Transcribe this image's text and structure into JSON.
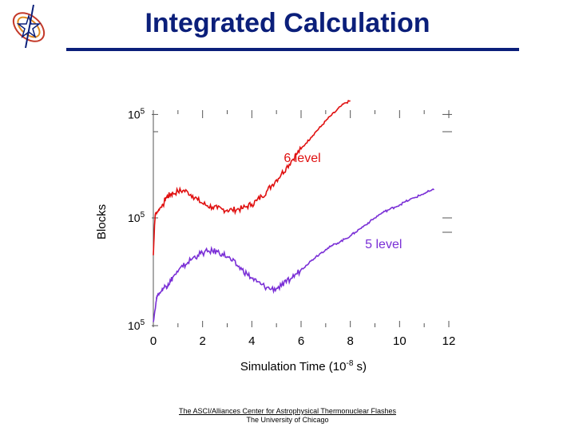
{
  "header": {
    "title": "Integrated Calculation"
  },
  "footer": {
    "line1": "The ASCI/Alliances Center for Astrophysical Thermonuclear Flashes",
    "line2": "The University of Chicago"
  },
  "colors": {
    "title": "#0b1f7a",
    "six_level": "#e01010",
    "five_level": "#7a2fd6"
  },
  "logo": {
    "icon": "flash-center-star-logo"
  },
  "chart_data": {
    "type": "line",
    "title": "",
    "xlabel_prefix": "Simulation Time (10",
    "xlabel_exp": "-8",
    "xlabel_suffix": " s)",
    "ylabel": "Blocks",
    "xlim": [
      0,
      12
    ],
    "ylim": [
      0,
      3
    ],
    "x_ticks": [
      0,
      2,
      4,
      6,
      8,
      10,
      12
    ],
    "y_tick_labels": [
      {
        "y": 0,
        "base": "10",
        "exp": "5"
      },
      {
        "y": 1.5,
        "base": "10",
        "exp": "5"
      },
      {
        "y": 2.94,
        "base": "10",
        "exp": "5"
      }
    ],
    "series": [
      {
        "name": "6 level",
        "label": "6 level",
        "color": "#e01010",
        "label_at": [
          5.3,
          2.28
        ],
        "x": [
          0.0,
          0.05,
          0.08,
          0.1,
          0.2,
          0.3,
          0.4,
          0.5,
          0.6,
          0.7,
          0.8,
          1.0,
          1.2,
          1.4,
          1.6,
          1.8,
          2.0,
          2.2,
          2.4,
          2.6,
          2.8,
          3.0,
          3.2,
          3.4,
          3.6,
          3.8,
          4.0,
          4.2,
          4.4,
          4.6,
          4.8,
          5.0,
          5.2,
          5.4,
          5.6,
          5.8,
          6.0,
          6.2,
          6.4,
          6.6,
          6.8,
          7.0,
          7.2,
          7.4,
          7.6,
          7.8,
          8.0
        ],
        "y": [
          0.98,
          1.4,
          1.55,
          1.56,
          1.6,
          1.65,
          1.68,
          1.78,
          1.8,
          1.83,
          1.84,
          1.87,
          1.88,
          1.86,
          1.81,
          1.75,
          1.7,
          1.67,
          1.65,
          1.63,
          1.62,
          1.61,
          1.61,
          1.62,
          1.63,
          1.66,
          1.69,
          1.74,
          1.8,
          1.87,
          1.95,
          2.03,
          2.11,
          2.2,
          2.29,
          2.38,
          2.46,
          2.54,
          2.62,
          2.7,
          2.77,
          2.85,
          2.92,
          2.98,
          3.05,
          3.1,
          3.13
        ]
      },
      {
        "name": "5 level",
        "label": "5 level",
        "color": "#7a2fd6",
        "label_at": [
          8.6,
          1.08
        ],
        "x": [
          0.0,
          0.1,
          0.15,
          0.2,
          0.3,
          0.4,
          0.5,
          0.6,
          0.7,
          0.8,
          1.0,
          1.2,
          1.4,
          1.6,
          1.8,
          2.0,
          2.2,
          2.4,
          2.6,
          2.8,
          3.0,
          3.2,
          3.4,
          3.6,
          3.8,
          4.0,
          4.2,
          4.4,
          4.6,
          4.8,
          5.0,
          5.2,
          5.4,
          5.6,
          5.8,
          6.0,
          6.2,
          6.4,
          6.6,
          6.8,
          7.0,
          7.2,
          7.4,
          7.6,
          7.8,
          8.0,
          8.2,
          8.4,
          8.6,
          8.8,
          9.0,
          9.2,
          9.4,
          9.6,
          9.8,
          10.0,
          10.2,
          10.4,
          10.6,
          10.8,
          11.0,
          11.2,
          11.4
        ],
        "y": [
          0.05,
          0.3,
          0.42,
          0.43,
          0.47,
          0.52,
          0.55,
          0.58,
          0.62,
          0.68,
          0.75,
          0.82,
          0.88,
          0.94,
          0.98,
          1.01,
          1.03,
          1.04,
          1.03,
          1.0,
          0.96,
          0.9,
          0.84,
          0.78,
          0.72,
          0.66,
          0.61,
          0.57,
          0.53,
          0.51,
          0.52,
          0.55,
          0.6,
          0.66,
          0.72,
          0.78,
          0.84,
          0.9,
          0.96,
          1.01,
          1.06,
          1.1,
          1.14,
          1.17,
          1.21,
          1.25,
          1.3,
          1.35,
          1.4,
          1.45,
          1.5,
          1.55,
          1.59,
          1.62,
          1.65,
          1.68,
          1.72,
          1.75,
          1.78,
          1.81,
          1.84,
          1.87,
          1.89
        ]
      }
    ]
  }
}
